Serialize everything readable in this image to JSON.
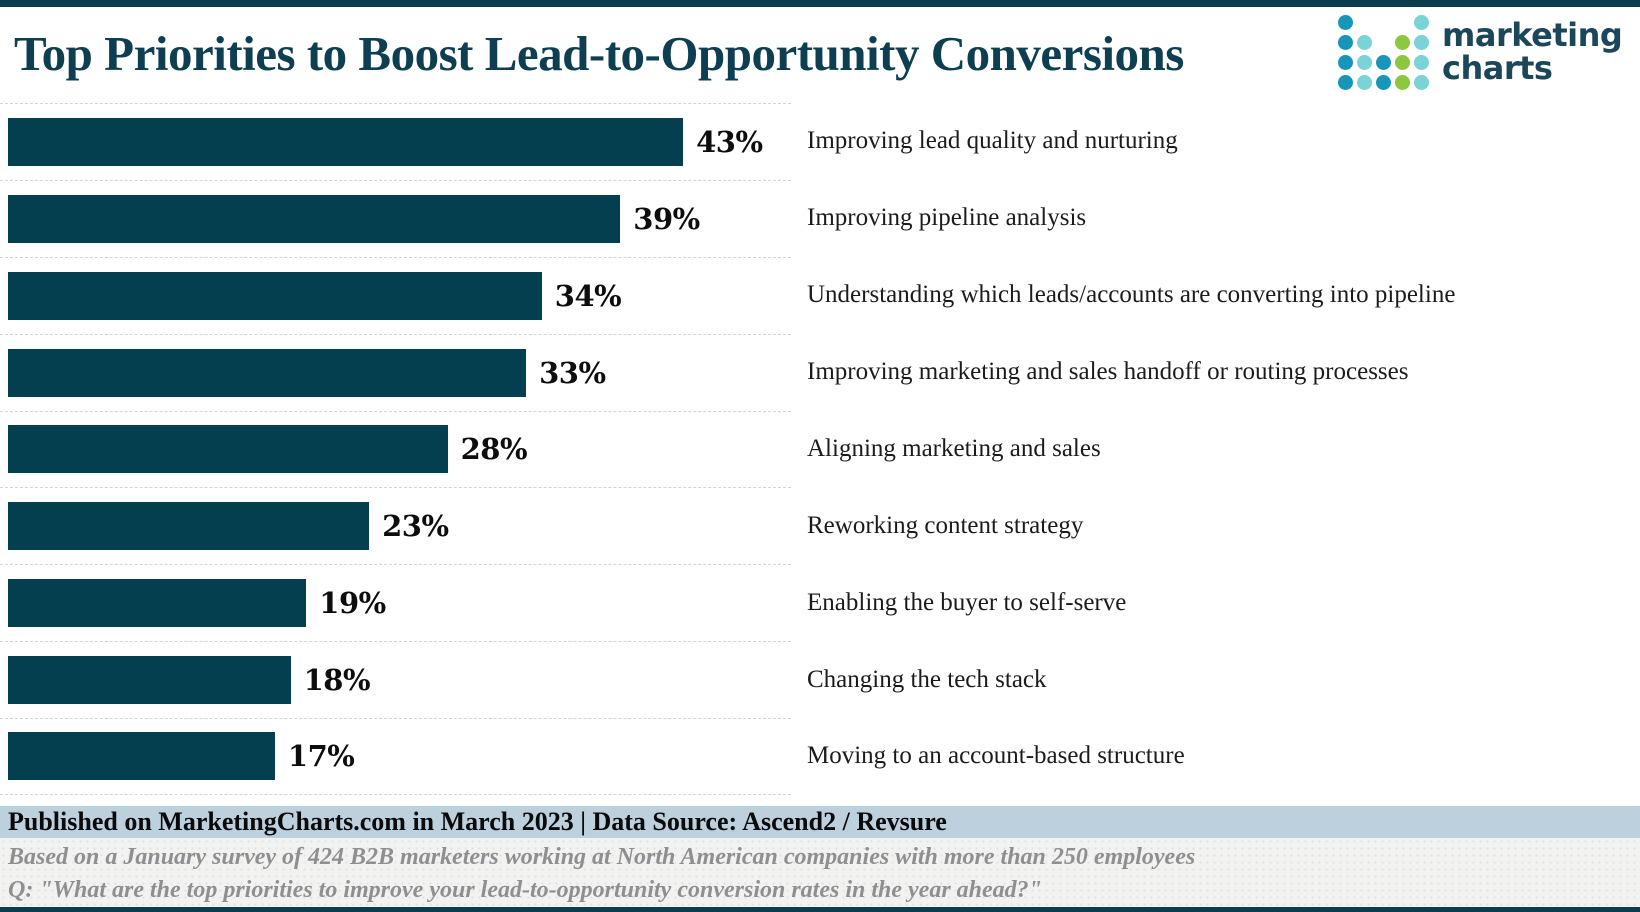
{
  "chart_data": {
    "type": "bar",
    "orientation": "horizontal",
    "title": "Top Priorities to Boost Lead-to-Opportunity Conversions",
    "categories": [
      "Improving lead quality and nurturing",
      "Improving pipeline analysis",
      "Understanding which leads/accounts are converting into pipeline",
      "Improving marketing and sales handoff or routing processes",
      "Aligning marketing and sales",
      "Reworking content strategy",
      "Enabling the buyer to self-serve",
      "Changing the tech stack",
      "Moving to an account-based structure"
    ],
    "values": [
      43,
      39,
      34,
      33,
      28,
      23,
      19,
      18,
      17
    ],
    "value_suffix": "%",
    "xlim": [
      0,
      50
    ],
    "bar_color": "#043f4f",
    "value_label_position": "right-of-bar",
    "category_label_position": "right-column",
    "grid": "dashed-row-dividers"
  },
  "header": {
    "logo": {
      "line1": "marketing",
      "line2": "charts",
      "colors": {
        "dark": "#1896ba",
        "light": "#79d3d7",
        "green": "#8dc63f"
      },
      "dots": [
        [
          "dark",
          null,
          null,
          null,
          "light"
        ],
        [
          "dark",
          "light",
          null,
          "green",
          "light"
        ],
        [
          "dark",
          "light",
          "dark",
          "green",
          "light"
        ],
        [
          "dark",
          "light",
          "dark",
          "green",
          "light"
        ]
      ]
    }
  },
  "footer": {
    "published": "Published on MarketingCharts.com in March 2023 | Data Source: Ascend2 / Revsure",
    "note1": "Based on a January survey of 424 B2B marketers working at North American companies with more than 250 employees",
    "note2": "Q: \"What are the top priorities to improve your lead-to-opportunity conversion rates in the year ahead?\"",
    "band_color": "#bcd0de"
  },
  "colors": {
    "accent_bar": "#0b3d4f",
    "title_text": "#0d3e52",
    "divider": "#ccd7dd",
    "note_band_bg": "#f2f2f0",
    "note_text": "#8e8f90"
  }
}
